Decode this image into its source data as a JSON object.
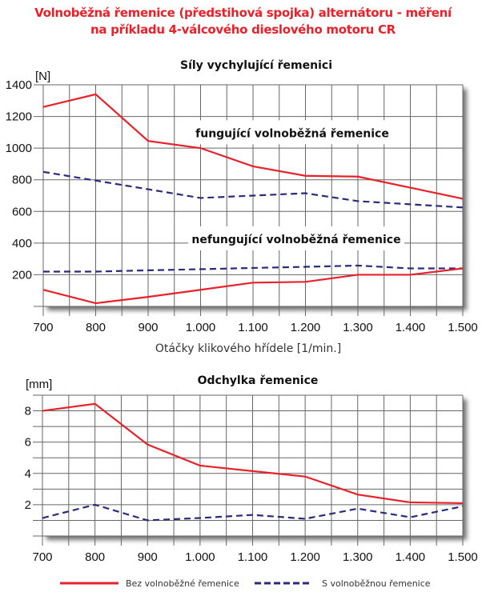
{
  "title_line1": "Volnoběžná řemenice (předstihová spojka) alternátoru - měření",
  "title_line2": "na příkladu 4-válcového dieslového motoru CR",
  "colors": {
    "red": "#e8212a",
    "blue": "#2b2a7e",
    "grid": "#555555"
  },
  "chart_data": [
    {
      "type": "line",
      "title": "Síly vychylující řemenici",
      "ylabel": "[N]",
      "xlabel": "Otáčky klikového hřídele [1/min.]",
      "x": [
        700,
        800,
        900,
        1000,
        1100,
        1200,
        1300,
        1400,
        1500
      ],
      "xtick_labels": [
        "700",
        "800",
        "900",
        "1.000",
        "1.100",
        "1.200",
        "1.300",
        "1.400",
        "1.500"
      ],
      "yticks": [
        200,
        400,
        600,
        800,
        1000,
        1200,
        1400
      ],
      "ylim": [
        0,
        1400
      ],
      "xlim": [
        700,
        1500
      ],
      "grid": true,
      "annotations": [
        "fungující  volnoběžná řemenice",
        "nefungující  volnoběžná řemenice"
      ],
      "series": [
        {
          "name": "Bez volnoběžné řemenice (fungující)",
          "style": "solid",
          "color": "#e8212a",
          "values": [
            1260,
            1340,
            1045,
            1000,
            885,
            825,
            820,
            750,
            680
          ]
        },
        {
          "name": "S volnoběžnou řemenicí (fungující)",
          "style": "dashed",
          "color": "#2b2a7e",
          "values": [
            850,
            795,
            740,
            685,
            700,
            715,
            665,
            645,
            625
          ]
        },
        {
          "name": "S volnoběžnou řemenicí (nefungující)",
          "style": "dashed",
          "color": "#2b2a7e",
          "values": [
            220,
            220,
            228,
            235,
            243,
            250,
            258,
            240,
            240
          ]
        },
        {
          "name": "Bez volnoběžné řemenice (nefungující)",
          "style": "solid",
          "color": "#e8212a",
          "values": [
            105,
            20,
            60,
            105,
            150,
            155,
            200,
            200,
            240
          ]
        }
      ]
    },
    {
      "type": "line",
      "title": "Odchylka řemenice",
      "ylabel": "[mm]",
      "x": [
        700,
        800,
        900,
        1000,
        1100,
        1200,
        1300,
        1400,
        1500
      ],
      "xtick_labels": [
        "700",
        "800",
        "900",
        "1.000",
        "1.100",
        "1.200",
        "1.300",
        "1.400",
        "1.500"
      ],
      "yticks": [
        2,
        4,
        6,
        8
      ],
      "ylim": [
        0,
        9
      ],
      "xlim": [
        700,
        1500
      ],
      "grid": true,
      "series": [
        {
          "name": "Bez volnoběžné řemenice",
          "style": "solid",
          "color": "#e8212a",
          "values": [
            8.0,
            8.45,
            5.85,
            4.5,
            4.15,
            3.8,
            2.65,
            2.15,
            2.1
          ]
        },
        {
          "name": "S volnoběžnou řemenice",
          "style": "dashed",
          "color": "#2b2a7e",
          "values": [
            1.15,
            2.0,
            1.0,
            1.15,
            1.35,
            1.1,
            1.75,
            1.2,
            1.9
          ]
        }
      ]
    }
  ],
  "legend": [
    {
      "label": "Bez volnoběžné řemenice",
      "style": "solid",
      "color": "#e8212a"
    },
    {
      "label": "S volnoběžnou řemenice",
      "style": "dashed",
      "color": "#2b2a7e"
    }
  ]
}
